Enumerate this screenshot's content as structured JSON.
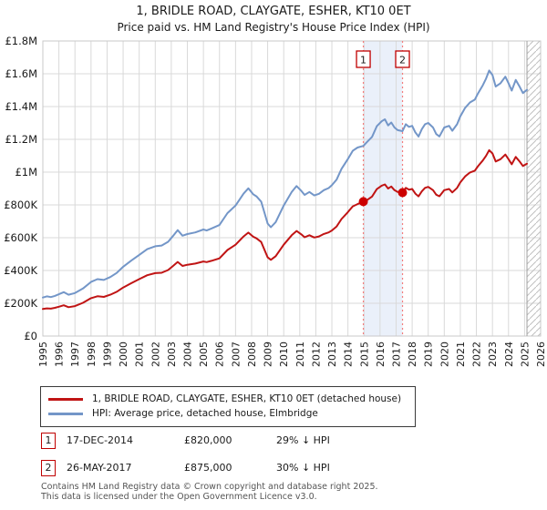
{
  "title": "1, BRIDLE ROAD, CLAYGATE, ESHER, KT10 0ET",
  "subtitle": "Price paid vs. HM Land Registry's House Price Index (HPI)",
  "colors": {
    "property_line": "#c01414",
    "hpi_line": "#7396c8",
    "sale_marker": "#cc0000",
    "dotted_line": "#f47c7c",
    "band_fill": "#eaf0fa",
    "grid": "#d9d9d9",
    "plot_border": "#c9c9c9",
    "hatch_line": "#c0c0c0",
    "data_end_line": "#a0a0a0",
    "annotation_box_border": "#c00000"
  },
  "chart_data": {
    "type": "line",
    "xlabel": "",
    "ylabel": "",
    "unit": "GBP thousands",
    "xlim": [
      1995,
      2026
    ],
    "ylim": [
      0,
      1800
    ],
    "grid": true,
    "legend_position": "below",
    "xticks": [
      1995,
      1996,
      1997,
      1998,
      1999,
      2000,
      2001,
      2002,
      2003,
      2004,
      2005,
      2006,
      2007,
      2008,
      2009,
      2010,
      2011,
      2012,
      2013,
      2014,
      2015,
      2016,
      2017,
      2018,
      2019,
      2020,
      2021,
      2022,
      2023,
      2024,
      2025,
      2026
    ],
    "ytick_values": [
      0,
      200,
      400,
      600,
      800,
      1000,
      1200,
      1400,
      1600,
      1800
    ],
    "ytick_labels": [
      "£0",
      "£200K",
      "£400K",
      "£600K",
      "£800K",
      "£1M",
      "£1.2M",
      "£1.4M",
      "£1.6M",
      "£1.8M"
    ],
    "x": [
      1995.0,
      1995.25,
      1995.5,
      1995.75,
      1996.0,
      1996.3,
      1996.6,
      1997.0,
      1997.5,
      1998.0,
      1998.4,
      1998.8,
      1999.2,
      1999.6,
      2000.0,
      2000.5,
      2001.0,
      2001.5,
      2002.0,
      2002.4,
      2002.8,
      2003.1,
      2003.4,
      2003.7,
      2004.0,
      2004.5,
      2005.0,
      2005.2,
      2005.5,
      2006.0,
      2006.5,
      2007.0,
      2007.5,
      2007.8,
      2008.1,
      2008.3,
      2008.6,
      2009.0,
      2009.2,
      2009.5,
      2010.0,
      2010.5,
      2010.8,
      2011.1,
      2011.3,
      2011.6,
      2011.9,
      2012.2,
      2012.5,
      2012.8,
      2013.0,
      2013.3,
      2013.6,
      2014.0,
      2014.3,
      2014.6,
      2014.96,
      2015.2,
      2015.5,
      2015.8,
      2016.1,
      2016.3,
      2016.5,
      2016.7,
      2016.9,
      2017.1,
      2017.4,
      2017.6,
      2017.8,
      2018.0,
      2018.2,
      2018.4,
      2018.6,
      2018.8,
      2019.0,
      2019.3,
      2019.5,
      2019.7,
      2020.0,
      2020.3,
      2020.5,
      2020.8,
      2021.0,
      2021.3,
      2021.6,
      2021.9,
      2022.1,
      2022.4,
      2022.6,
      2022.8,
      2023.0,
      2023.2,
      2023.5,
      2023.8,
      2024.0,
      2024.2,
      2024.45,
      2024.7,
      2024.9,
      2025.15
    ],
    "series": [
      {
        "name": "1, BRIDLE ROAD, CLAYGATE, ESHER, KT10 0ET (detached house)",
        "color": "#c01414",
        "values": [
          165,
          169,
          167,
          172,
          179,
          188,
          176,
          183,
          203,
          231,
          243,
          239,
          252,
          270,
          296,
          322,
          347,
          371,
          384,
          386,
          403,
          427,
          452,
          428,
          435,
          442,
          455,
          451,
          459,
          474,
          525,
          557,
          608,
          631,
          606,
          596,
          574,
          480,
          465,
          487,
          557,
          615,
          641,
          620,
          603,
          615,
          601,
          608,
          623,
          632,
          644,
          669,
          714,
          756,
          791,
          805,
          820,
          830,
          851,
          896,
          917,
          925,
          900,
          912,
          890,
          879,
          875,
          904,
          893,
          897,
          869,
          852,
          883,
          904,
          910,
          890,
          862,
          853,
          890,
          897,
          876,
          904,
          938,
          974,
          998,
          1009,
          1036,
          1071,
          1099,
          1134,
          1114,
          1065,
          1079,
          1107,
          1079,
          1048,
          1093,
          1064,
          1037,
          1051
        ]
      },
      {
        "name": "HPI: Average price, detached house, Elmbridge",
        "color": "#7396c8",
        "values": [
          235,
          242,
          238,
          245,
          255,
          268,
          252,
          262,
          290,
          330,
          347,
          342,
          360,
          385,
          423,
          460,
          495,
          530,
          548,
          552,
          575,
          610,
          646,
          612,
          622,
          632,
          650,
          644,
          656,
          677,
          750,
          796,
          869,
          901,
          865,
          852,
          820,
          686,
          664,
          695,
          796,
          879,
          915,
          885,
          861,
          879,
          858,
          868,
          890,
          903,
          920,
          955,
          1020,
          1080,
          1130,
          1150,
          1160,
          1185,
          1215,
          1280,
          1310,
          1322,
          1285,
          1303,
          1272,
          1256,
          1250,
          1292,
          1276,
          1282,
          1242,
          1217,
          1262,
          1292,
          1300,
          1272,
          1232,
          1218,
          1272,
          1282,
          1252,
          1292,
          1340,
          1392,
          1425,
          1442,
          1480,
          1530,
          1570,
          1620,
          1592,
          1522,
          1542,
          1582,
          1542,
          1497,
          1562,
          1520,
          1482,
          1502
        ]
      }
    ],
    "sales": [
      {
        "num": "1",
        "x": 2014.96,
        "value": 820,
        "date": "17-DEC-2014"
      },
      {
        "num": "2",
        "x": 2017.4,
        "value": 875,
        "date": "26-MAY-2017"
      }
    ],
    "band": [
      2014.96,
      2017.4
    ],
    "hatch_start": 2025.15
  },
  "legend": [
    {
      "label": "1, BRIDLE ROAD, CLAYGATE, ESHER, KT10 0ET (detached house)"
    },
    {
      "label": "HPI: Average price, detached house, Elmbridge"
    }
  ],
  "annotations": [
    {
      "num": "1",
      "date": "17-DEC-2014",
      "price": "£820,000",
      "delta": "29% ↓ HPI"
    },
    {
      "num": "2",
      "date": "26-MAY-2017",
      "price": "£875,000",
      "delta": "30% ↓ HPI"
    }
  ],
  "footer": {
    "line1": "Contains HM Land Registry data © Crown copyright and database right 2025.",
    "line2": "This data is licensed under the Open Government Licence v3.0."
  }
}
